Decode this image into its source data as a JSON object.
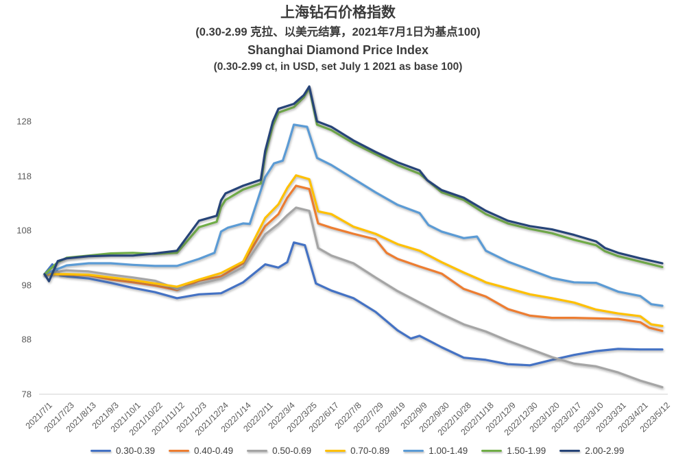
{
  "title": {
    "zh_main": "上海钻石价格指数",
    "zh_sub": "(0.30-2.99 克拉、以美元结算，2021年7月1日为基点100)",
    "en_main": "Shanghai Diamond Price Index",
    "en_sub": "(0.30-2.99 ct, in USD, set July 1 2021 as base 100)"
  },
  "chart_data": {
    "type": "line",
    "title": "Shanghai Diamond Price Index (0.30-2.99 ct, in USD, set July 1 2021 as base 100)",
    "xlabel": "",
    "ylabel": "",
    "ylim": [
      78,
      136
    ],
    "y_ticks": [
      78,
      88,
      98,
      108,
      118,
      128
    ],
    "grid": "baseline-only",
    "legend_position": "bottom",
    "x_labels": [
      "2021/7/1",
      "2021/7/23",
      "2021/8/13",
      "2021/9/3",
      "2021/10/1",
      "2021/10/22",
      "2021/11/12",
      "2021/12/3",
      "2021/12/24",
      "2022/1/14",
      "2022/2/11",
      "2022/3/4",
      "2022/3/25",
      "2022/6/17",
      "2022/7/8",
      "2022/7/29",
      "2022/8/19",
      "2022/9/9",
      "2022/9/30",
      "2022/10/28",
      "2022/11/18",
      "2022/12/9",
      "2022/12/30",
      "2023/1/20",
      "2023/2/17",
      "2023/3/10",
      "2023/3/31",
      "2023/4/21",
      "2023/5/12"
    ],
    "x_note": "points are [x_label_index (fractional allowed), index_value]",
    "series": [
      {
        "name": "0.30-0.39",
        "color": "#4472C4",
        "points": [
          [
            0,
            100
          ],
          [
            0.35,
            101.8
          ],
          [
            0.7,
            99.8
          ],
          [
            1,
            99.6
          ],
          [
            2,
            99.2
          ],
          [
            3,
            98.4
          ],
          [
            4,
            97.5
          ],
          [
            5,
            96.7
          ],
          [
            6,
            95.6
          ],
          [
            7,
            96.3
          ],
          [
            8,
            96.5
          ],
          [
            9,
            98.5
          ],
          [
            10,
            101.8
          ],
          [
            10.6,
            101.2
          ],
          [
            11,
            102.2
          ],
          [
            11.3,
            105.8
          ],
          [
            11.8,
            105.3
          ],
          [
            12.3,
            98.3
          ],
          [
            13,
            97
          ],
          [
            14,
            95.6
          ],
          [
            15,
            93.1
          ],
          [
            16,
            89.7
          ],
          [
            16.6,
            88.2
          ],
          [
            17,
            88.7
          ],
          [
            18,
            86.6
          ],
          [
            19,
            84.7
          ],
          [
            20,
            84.3
          ],
          [
            21,
            83.5
          ],
          [
            22,
            83.3
          ],
          [
            23,
            84.3
          ],
          [
            24,
            85.2
          ],
          [
            25,
            85.9
          ],
          [
            26,
            86.3
          ],
          [
            27,
            86.2
          ],
          [
            28,
            86.2
          ]
        ]
      },
      {
        "name": "0.40-0.49",
        "color": "#ED7D31",
        "points": [
          [
            0,
            100
          ],
          [
            1,
            99.9
          ],
          [
            2,
            99.8
          ],
          [
            3,
            99
          ],
          [
            4,
            98.5
          ],
          [
            5,
            97.9
          ],
          [
            6,
            97.1
          ],
          [
            7,
            98.8
          ],
          [
            8,
            99.6
          ],
          [
            9,
            102
          ],
          [
            10,
            108.8
          ],
          [
            10.6,
            111
          ],
          [
            11,
            114
          ],
          [
            11.4,
            116.2
          ],
          [
            12,
            115.6
          ],
          [
            12.4,
            109.3
          ],
          [
            13,
            108.5
          ],
          [
            14,
            107.4
          ],
          [
            15,
            106.4
          ],
          [
            15.5,
            103.9
          ],
          [
            16,
            102.8
          ],
          [
            17,
            101.4
          ],
          [
            18,
            100.1
          ],
          [
            19,
            97.3
          ],
          [
            20,
            95.9
          ],
          [
            21,
            93.6
          ],
          [
            22,
            92.4
          ],
          [
            23,
            92
          ],
          [
            24,
            92
          ],
          [
            25,
            91.9
          ],
          [
            26,
            91.8
          ],
          [
            27,
            91.2
          ],
          [
            27.4,
            90.2
          ],
          [
            28,
            89.6
          ]
        ]
      },
      {
        "name": "0.50-0.69",
        "color": "#A5A5A5",
        "points": [
          [
            0,
            100
          ],
          [
            1,
            100.7
          ],
          [
            2,
            100.5
          ],
          [
            3,
            99.9
          ],
          [
            4,
            99.4
          ],
          [
            5,
            98.8
          ],
          [
            6,
            97.3
          ],
          [
            7,
            98.2
          ],
          [
            8,
            99.2
          ],
          [
            9,
            101.3
          ],
          [
            10,
            107.3
          ],
          [
            10.6,
            109.2
          ],
          [
            11,
            110.8
          ],
          [
            11.4,
            112.2
          ],
          [
            12,
            111.6
          ],
          [
            12.4,
            104.8
          ],
          [
            13,
            103.4
          ],
          [
            14,
            102
          ],
          [
            15,
            99.4
          ],
          [
            16,
            96.9
          ],
          [
            17,
            94.8
          ],
          [
            18,
            92.7
          ],
          [
            19,
            90.8
          ],
          [
            20,
            89.5
          ],
          [
            21,
            87.8
          ],
          [
            22,
            86.3
          ],
          [
            23,
            84.8
          ],
          [
            24,
            83.6
          ],
          [
            25,
            83.1
          ],
          [
            26,
            82
          ],
          [
            27,
            80.5
          ],
          [
            28,
            79.3
          ]
        ]
      },
      {
        "name": "0.70-0.89",
        "color": "#FFC000",
        "points": [
          [
            0,
            100
          ],
          [
            1,
            100
          ],
          [
            2,
            99.9
          ],
          [
            3,
            99.4
          ],
          [
            4,
            98.9
          ],
          [
            5,
            98.3
          ],
          [
            6,
            97.7
          ],
          [
            7,
            99
          ],
          [
            8,
            100.2
          ],
          [
            9,
            102.3
          ],
          [
            10,
            110.3
          ],
          [
            10.6,
            112.8
          ],
          [
            11,
            115.8
          ],
          [
            11.4,
            118.1
          ],
          [
            12,
            117.4
          ],
          [
            12.4,
            111.5
          ],
          [
            13,
            111
          ],
          [
            14,
            108.7
          ],
          [
            15,
            107.4
          ],
          [
            16,
            105.5
          ],
          [
            17,
            104.3
          ],
          [
            18,
            102.2
          ],
          [
            19,
            100.3
          ],
          [
            19.8,
            98.9
          ],
          [
            20,
            98.5
          ],
          [
            21,
            97.4
          ],
          [
            22,
            96.3
          ],
          [
            23,
            95.6
          ],
          [
            24,
            94.8
          ],
          [
            25,
            93.5
          ],
          [
            26,
            92.8
          ],
          [
            27,
            92.3
          ],
          [
            27.5,
            90.8
          ],
          [
            28,
            90.5
          ]
        ]
      },
      {
        "name": "1.00-1.49",
        "color": "#5B9BD5",
        "points": [
          [
            0,
            100
          ],
          [
            1,
            101.6
          ],
          [
            2,
            102
          ],
          [
            3,
            102
          ],
          [
            4,
            101.7
          ],
          [
            5,
            101.5
          ],
          [
            6,
            101.5
          ],
          [
            7,
            102.8
          ],
          [
            7.7,
            103.9
          ],
          [
            8,
            107.8
          ],
          [
            8.3,
            108.5
          ],
          [
            9,
            109.3
          ],
          [
            9.3,
            109.2
          ],
          [
            10,
            117.8
          ],
          [
            10.4,
            120.3
          ],
          [
            10.8,
            120.8
          ],
          [
            11,
            123.3
          ],
          [
            11.3,
            127.4
          ],
          [
            11.9,
            127
          ],
          [
            12.35,
            121.3
          ],
          [
            13,
            120
          ],
          [
            14,
            117.5
          ],
          [
            15,
            115
          ],
          [
            16,
            112.7
          ],
          [
            17,
            111.2
          ],
          [
            17.4,
            109
          ],
          [
            18,
            107.8
          ],
          [
            19,
            106.6
          ],
          [
            19.6,
            106.9
          ],
          [
            20,
            104.3
          ],
          [
            21,
            102.3
          ],
          [
            22,
            100.8
          ],
          [
            23,
            99.3
          ],
          [
            24,
            98.5
          ],
          [
            25,
            98.4
          ],
          [
            26,
            96.8
          ],
          [
            27,
            96
          ],
          [
            27.5,
            94.5
          ],
          [
            28,
            94.2
          ]
        ]
      },
      {
        "name": "1.50-1.99",
        "color": "#70AD47",
        "points": [
          [
            0,
            100
          ],
          [
            0.6,
            102.2
          ],
          [
            1,
            103
          ],
          [
            2,
            103.4
          ],
          [
            3,
            103.8
          ],
          [
            4,
            103.9
          ],
          [
            5,
            103.7
          ],
          [
            6,
            103.9
          ],
          [
            7,
            108.6
          ],
          [
            7.8,
            109.6
          ],
          [
            8,
            112.3
          ],
          [
            8.2,
            113.6
          ],
          [
            9,
            115.5
          ],
          [
            9.8,
            116.6
          ],
          [
            10,
            121.8
          ],
          [
            10.35,
            127.2
          ],
          [
            10.6,
            129.6
          ],
          [
            11.3,
            130.6
          ],
          [
            11.75,
            132.4
          ],
          [
            12,
            134.1
          ],
          [
            12.35,
            127.4
          ],
          [
            13,
            126.4
          ],
          [
            14,
            124
          ],
          [
            15,
            122
          ],
          [
            16,
            120
          ],
          [
            17,
            118.4
          ],
          [
            18,
            115
          ],
          [
            19,
            113.6
          ],
          [
            20,
            111
          ],
          [
            21,
            109.3
          ],
          [
            22,
            108.3
          ],
          [
            23,
            107.5
          ],
          [
            24,
            106.3
          ],
          [
            25,
            105.3
          ],
          [
            25.4,
            104.2
          ],
          [
            26,
            103.3
          ],
          [
            27,
            102.3
          ],
          [
            28,
            101.3
          ]
        ]
      },
      {
        "name": "2.00-2.99",
        "color": "#264478",
        "points": [
          [
            0,
            100
          ],
          [
            0.2,
            98.7
          ],
          [
            0.6,
            102.4
          ],
          [
            1,
            102.9
          ],
          [
            2,
            103.3
          ],
          [
            3,
            103.4
          ],
          [
            4,
            103.4
          ],
          [
            5,
            103.8
          ],
          [
            6,
            104.3
          ],
          [
            7,
            109.8
          ],
          [
            7.8,
            110.7
          ],
          [
            8,
            113.5
          ],
          [
            8.2,
            114.8
          ],
          [
            9,
            116.2
          ],
          [
            9.8,
            117.3
          ],
          [
            10,
            122.6
          ],
          [
            10.35,
            128
          ],
          [
            10.6,
            130.3
          ],
          [
            11.3,
            131.2
          ],
          [
            11.75,
            132.8
          ],
          [
            12,
            134.4
          ],
          [
            12.35,
            128
          ],
          [
            13,
            127
          ],
          [
            14,
            124.5
          ],
          [
            15,
            122.4
          ],
          [
            16,
            120.5
          ],
          [
            17,
            119
          ],
          [
            17.35,
            117.2
          ],
          [
            18,
            115.4
          ],
          [
            19,
            114
          ],
          [
            20,
            111.6
          ],
          [
            21,
            109.8
          ],
          [
            22,
            108.8
          ],
          [
            23,
            108.2
          ],
          [
            24,
            107.2
          ],
          [
            25,
            106
          ],
          [
            25.4,
            104.8
          ],
          [
            26,
            103.9
          ],
          [
            27,
            102.9
          ],
          [
            28,
            102
          ]
        ]
      }
    ]
  }
}
